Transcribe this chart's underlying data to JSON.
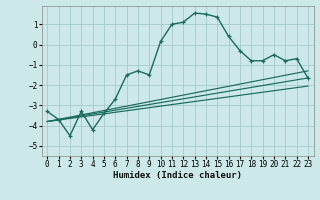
{
  "xlabel": "Humidex (Indice chaleur)",
  "background_color": "#cce8e8",
  "grid_color": "#aacece",
  "line_color": "#1a6b5a",
  "xlim": [
    -0.5,
    23.5
  ],
  "ylim": [
    -5.5,
    1.9
  ],
  "xticks": [
    0,
    1,
    2,
    3,
    4,
    5,
    6,
    7,
    8,
    9,
    10,
    11,
    12,
    13,
    14,
    15,
    16,
    17,
    18,
    19,
    20,
    21,
    22,
    23
  ],
  "yticks": [
    -5,
    -4,
    -3,
    -2,
    -1,
    0,
    1
  ],
  "main_x": [
    0,
    1,
    2,
    3,
    4,
    5,
    6,
    7,
    8,
    9,
    10,
    11,
    12,
    13,
    14,
    15,
    16,
    17,
    18,
    19,
    20,
    21,
    22,
    23
  ],
  "main_y": [
    -3.3,
    -3.7,
    -4.5,
    -3.3,
    -4.2,
    -3.4,
    -2.7,
    -1.5,
    -1.3,
    -1.5,
    0.15,
    1.0,
    1.1,
    1.55,
    1.5,
    1.35,
    0.4,
    -0.3,
    -0.8,
    -0.8,
    -0.5,
    -0.8,
    -0.7,
    -1.65
  ],
  "line1_x": [
    0,
    23
  ],
  "line1_y": [
    -3.8,
    -1.65
  ],
  "line2_x": [
    0,
    23
  ],
  "line2_y": [
    -3.8,
    -1.3
  ],
  "line3_x": [
    0,
    23
  ],
  "line3_y": [
    -3.8,
    -2.05
  ]
}
